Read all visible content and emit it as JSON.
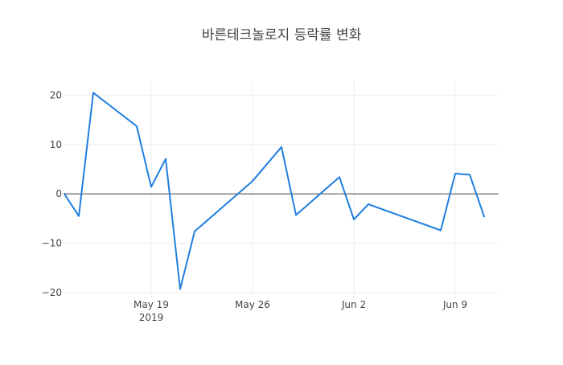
{
  "chart_data": {
    "type": "line",
    "title": "바른테크놀로지 등락률 변화",
    "xlabel": "",
    "ylabel": "",
    "x_type": "date",
    "xlim": [
      "2019-05-13",
      "2019-06-12"
    ],
    "ylim": [
      -21,
      23
    ],
    "grid": true,
    "zero_line": true,
    "line_color": "#1f7fe0",
    "x_ticks": [
      {
        "date": "2019-05-19",
        "label": "May 19",
        "sublabel": "2019"
      },
      {
        "date": "2019-05-26",
        "label": "May 26",
        "sublabel": ""
      },
      {
        "date": "2019-06-02",
        "label": "Jun 2",
        "sublabel": ""
      },
      {
        "date": "2019-06-09",
        "label": "Jun 9",
        "sublabel": ""
      }
    ],
    "y_ticks": [
      {
        "value": 20,
        "label": "20"
      },
      {
        "value": 10,
        "label": "10"
      },
      {
        "value": 0,
        "label": "0"
      },
      {
        "value": -10,
        "label": "−10"
      },
      {
        "value": -20,
        "label": "−20"
      }
    ],
    "series": [
      {
        "points": [
          {
            "x": "2019-05-13",
            "y": 0
          },
          {
            "x": "2019-05-14",
            "y": -4.5
          },
          {
            "x": "2019-05-15",
            "y": 20.5
          },
          {
            "x": "2019-05-18",
            "y": 13.7
          },
          {
            "x": "2019-05-19",
            "y": 1.4
          },
          {
            "x": "2019-05-20",
            "y": 7.1
          },
          {
            "x": "2019-05-21",
            "y": -19.3
          },
          {
            "x": "2019-05-22",
            "y": -7.6
          },
          {
            "x": "2019-05-26",
            "y": 2.6
          },
          {
            "x": "2019-05-28",
            "y": 9.5
          },
          {
            "x": "2019-05-29",
            "y": -4.3
          },
          {
            "x": "2019-06-01",
            "y": 3.4
          },
          {
            "x": "2019-06-02",
            "y": -5.2
          },
          {
            "x": "2019-06-03",
            "y": -2.1
          },
          {
            "x": "2019-06-08",
            "y": -7.4
          },
          {
            "x": "2019-06-09",
            "y": 4.1
          },
          {
            "x": "2019-06-10",
            "y": 3.9
          },
          {
            "x": "2019-06-11",
            "y": -4.6
          }
        ]
      }
    ]
  }
}
